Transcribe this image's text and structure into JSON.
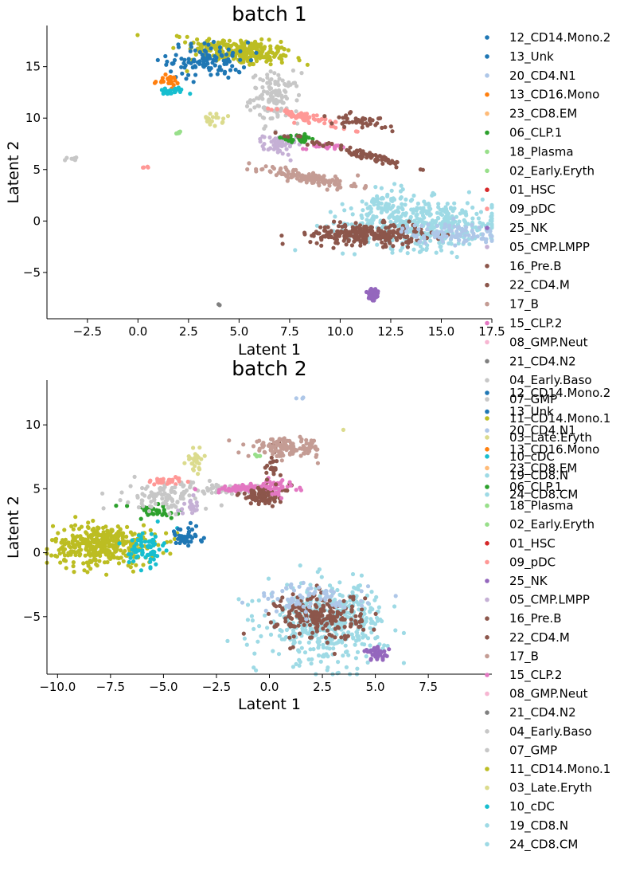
{
  "chart_data": [
    {
      "type": "scatter",
      "title": "batch 1",
      "xlabel": "Latent 1",
      "ylabel": "Latent 2",
      "xlim": [
        -4.5,
        17.5
      ],
      "ylim": [
        -9.5,
        19
      ],
      "xticks": [
        "−2.5",
        "0.0",
        "2.5",
        "5.0",
        "7.5",
        "10.0",
        "12.5",
        "15.0",
        "17.5"
      ],
      "xtick_values": [
        -2.5,
        0,
        2.5,
        5,
        7.5,
        10,
        12.5,
        15,
        17.5
      ],
      "yticks": [
        "−5",
        "0",
        "5",
        "10",
        "15"
      ],
      "ytick_values": [
        -5,
        0,
        5,
        10,
        15
      ],
      "grid": false,
      "legend_position": "right",
      "legend": [
        {
          "name": "12_CD14.Mono.2",
          "color": "#1f77b4"
        },
        {
          "name": "13_Unk",
          "color": "#1f77b4"
        },
        {
          "name": "20_CD4.N1",
          "color": "#aec7e8"
        },
        {
          "name": "13_CD16.Mono",
          "color": "#ff7f0e"
        },
        {
          "name": "23_CD8.EM",
          "color": "#ffbb78"
        },
        {
          "name": "06_CLP.1",
          "color": "#2ca02c"
        },
        {
          "name": "18_Plasma",
          "color": "#98df8a"
        },
        {
          "name": "02_Early.Eryth",
          "color": "#98df8a"
        },
        {
          "name": "01_HSC",
          "color": "#d62728"
        },
        {
          "name": "09_pDC",
          "color": "#ff9896"
        },
        {
          "name": "25_NK",
          "color": "#9467bd"
        },
        {
          "name": "05_CMP.LMPP",
          "color": "#c5b0d5"
        },
        {
          "name": "16_Pre.B",
          "color": "#8c564b"
        },
        {
          "name": "22_CD4.M",
          "color": "#8c564b"
        },
        {
          "name": "17_B",
          "color": "#c49c94"
        },
        {
          "name": "15_CLP.2",
          "color": "#e377c2"
        },
        {
          "name": "08_GMP.Neut",
          "color": "#f7b6d2"
        },
        {
          "name": "21_CD4.N2",
          "color": "#7f7f7f"
        },
        {
          "name": "04_Early.Baso",
          "color": "#c7c7c7"
        },
        {
          "name": "07_GMP",
          "color": "#c7c7c7"
        },
        {
          "name": "11_CD14.Mono.1",
          "color": "#bcbd22"
        },
        {
          "name": "03_Late.Eryth",
          "color": "#dbdb8d"
        },
        {
          "name": "10_cDC",
          "color": "#17becf"
        },
        {
          "name": "19_CD8.N",
          "color": "#9edae5"
        },
        {
          "name": "24_CD8.CM",
          "color": "#9edae5"
        }
      ],
      "clusters": [
        {
          "color": "#bcbd22",
          "cx": 5.0,
          "cy": 16.5,
          "sx": 1.3,
          "sy": 0.6,
          "n": 260,
          "rot": -0.25
        },
        {
          "color": "#1f77b4",
          "cx": 3.5,
          "cy": 15.6,
          "sx": 1.0,
          "sy": 0.9,
          "n": 110,
          "rot": 0
        },
        {
          "color": "#ff7f0e",
          "cx": 1.4,
          "cy": 13.6,
          "sx": 0.3,
          "sy": 0.25,
          "n": 25,
          "rot": 0
        },
        {
          "color": "#17becf",
          "cx": 1.6,
          "cy": 12.6,
          "sx": 0.35,
          "sy": 0.2,
          "n": 25,
          "rot": 0
        },
        {
          "color": "#c7c7c7",
          "cx": 6.8,
          "cy": 12.0,
          "sx": 0.6,
          "sy": 1.2,
          "n": 120,
          "rot": 0
        },
        {
          "color": "#dbdb8d",
          "cx": 3.7,
          "cy": 9.8,
          "sx": 0.25,
          "sy": 0.3,
          "n": 20,
          "rot": 0
        },
        {
          "color": "#98df8a",
          "cx": 2.0,
          "cy": 8.6,
          "sx": 0.08,
          "sy": 0.1,
          "n": 6,
          "rot": 0
        },
        {
          "color": "#c7c7c7",
          "cx": -3.3,
          "cy": 6.1,
          "sx": 0.15,
          "sy": 0.1,
          "n": 10,
          "rot": 0
        },
        {
          "color": "#ff9896",
          "cx": 0.4,
          "cy": 5.2,
          "sx": 0.1,
          "sy": 0.05,
          "n": 4,
          "rot": 0
        },
        {
          "color": "#ff9896",
          "cx": 8.5,
          "cy": 10.0,
          "sx": 0.9,
          "sy": 0.2,
          "n": 60,
          "rot": -0.5
        },
        {
          "color": "#c5b0d5",
          "cx": 7.0,
          "cy": 7.4,
          "sx": 0.4,
          "sy": 0.5,
          "n": 60,
          "rot": 0
        },
        {
          "color": "#2ca02c",
          "cx": 7.8,
          "cy": 8.0,
          "sx": 0.6,
          "sy": 0.2,
          "n": 30,
          "rot": 0
        },
        {
          "color": "#e377c2",
          "cx": 9.2,
          "cy": 7.3,
          "sx": 0.5,
          "sy": 0.15,
          "n": 30,
          "rot": 0
        },
        {
          "color": "#8c564b",
          "cx": 11.0,
          "cy": 9.6,
          "sx": 0.8,
          "sy": 0.3,
          "n": 40,
          "rot": -0.4
        },
        {
          "color": "#c49c94",
          "cx": 8.5,
          "cy": 4.2,
          "sx": 1.3,
          "sy": 0.3,
          "n": 120,
          "rot": -0.35
        },
        {
          "color": "#8c564b",
          "cx": 11.0,
          "cy": 6.5,
          "sx": 1.5,
          "sy": 0.2,
          "n": 80,
          "rot": -0.45
        },
        {
          "color": "#9edae5",
          "cx": 14.2,
          "cy": -0.3,
          "sx": 2.0,
          "sy": 1.2,
          "n": 420,
          "rot": 0
        },
        {
          "color": "#9edae5",
          "cx": 12.3,
          "cy": 1.8,
          "sx": 0.5,
          "sy": 1.0,
          "n": 60,
          "rot": 0
        },
        {
          "color": "#8c564b",
          "cx": 11.3,
          "cy": -1.3,
          "sx": 1.4,
          "sy": 0.5,
          "n": 260,
          "rot": 0
        },
        {
          "color": "#aec7e8",
          "cx": 15.5,
          "cy": -1.2,
          "sx": 1.2,
          "sy": 0.5,
          "n": 90,
          "rot": 0
        },
        {
          "color": "#9467bd",
          "cx": 11.6,
          "cy": -7.2,
          "sx": 0.15,
          "sy": 0.45,
          "n": 40,
          "rot": 0
        },
        {
          "color": "#7f7f7f",
          "cx": 4.0,
          "cy": -8.1,
          "sx": 0.03,
          "sy": 0.03,
          "n": 2,
          "rot": 0
        }
      ]
    },
    {
      "type": "scatter",
      "title": "batch 2",
      "xlabel": "Latent 1",
      "ylabel": "Latent 2",
      "xlim": [
        -10.5,
        10.5
      ],
      "ylim": [
        -9.5,
        13.5
      ],
      "xticks": [
        "−10.0",
        "−7.5",
        "−5.0",
        "−2.5",
        "0.0",
        "2.5",
        "5.0",
        "7.5"
      ],
      "xtick_values": [
        -10,
        -7.5,
        -5,
        -2.5,
        0,
        2.5,
        5,
        7.5
      ],
      "yticks": [
        "−5",
        "0",
        "5",
        "10"
      ],
      "ytick_values": [
        -5,
        0,
        5,
        10
      ],
      "grid": false,
      "legend_position": "right",
      "legend": [
        {
          "name": "12_CD14.Mono.2",
          "color": "#1f77b4"
        },
        {
          "name": "13_Unk",
          "color": "#1f77b4"
        },
        {
          "name": "20_CD4.N1",
          "color": "#aec7e8"
        },
        {
          "name": "13_CD16.Mono",
          "color": "#ff7f0e"
        },
        {
          "name": "23_CD8.EM",
          "color": "#ffbb78"
        },
        {
          "name": "06_CLP.1",
          "color": "#2ca02c"
        },
        {
          "name": "18_Plasma",
          "color": "#98df8a"
        },
        {
          "name": "02_Early.Eryth",
          "color": "#98df8a"
        },
        {
          "name": "01_HSC",
          "color": "#d62728"
        },
        {
          "name": "09_pDC",
          "color": "#ff9896"
        },
        {
          "name": "25_NK",
          "color": "#9467bd"
        },
        {
          "name": "05_CMP.LMPP",
          "color": "#c5b0d5"
        },
        {
          "name": "16_Pre.B",
          "color": "#8c564b"
        },
        {
          "name": "22_CD4.M",
          "color": "#8c564b"
        },
        {
          "name": "17_B",
          "color": "#c49c94"
        },
        {
          "name": "15_CLP.2",
          "color": "#e377c2"
        },
        {
          "name": "08_GMP.Neut",
          "color": "#f7b6d2"
        },
        {
          "name": "21_CD4.N2",
          "color": "#7f7f7f"
        },
        {
          "name": "04_Early.Baso",
          "color": "#c7c7c7"
        },
        {
          "name": "07_GMP",
          "color": "#c7c7c7"
        },
        {
          "name": "11_CD14.Mono.1",
          "color": "#bcbd22"
        },
        {
          "name": "03_Late.Eryth",
          "color": "#dbdb8d"
        },
        {
          "name": "10_cDC",
          "color": "#17becf"
        },
        {
          "name": "19_CD8.N",
          "color": "#9edae5"
        },
        {
          "name": "24_CD8.CM",
          "color": "#9edae5"
        }
      ],
      "clusters": [
        {
          "color": "#bcbd22",
          "cx": -7.8,
          "cy": 0.6,
          "sx": 1.2,
          "sy": 0.8,
          "n": 380,
          "rot": 0
        },
        {
          "color": "#17becf",
          "cx": -5.8,
          "cy": 0.4,
          "sx": 0.4,
          "sy": 0.7,
          "n": 70,
          "rot": 0
        },
        {
          "color": "#1f77b4",
          "cx": -4.0,
          "cy": 1.2,
          "sx": 0.4,
          "sy": 0.4,
          "n": 40,
          "rot": 0
        },
        {
          "color": "#2ca02c",
          "cx": -5.5,
          "cy": 3.2,
          "sx": 0.8,
          "sy": 0.3,
          "n": 40,
          "rot": 0
        },
        {
          "color": "#c7c7c7",
          "cx": -4.8,
          "cy": 4.5,
          "sx": 1.0,
          "sy": 0.6,
          "n": 110,
          "rot": 0
        },
        {
          "color": "#ff9896",
          "cx": -4.8,
          "cy": 5.6,
          "sx": 0.6,
          "sy": 0.15,
          "n": 30,
          "rot": 0
        },
        {
          "color": "#dbdb8d",
          "cx": -3.5,
          "cy": 7.2,
          "sx": 0.2,
          "sy": 0.5,
          "n": 30,
          "rot": 0
        },
        {
          "color": "#c7c7c7",
          "cx": -1.7,
          "cy": 5.0,
          "sx": 1.0,
          "sy": 0.15,
          "n": 60,
          "rot": 0
        },
        {
          "color": "#e377c2",
          "cx": -1.2,
          "cy": 5.0,
          "sx": 1.1,
          "sy": 0.15,
          "n": 70,
          "rot": 0
        },
        {
          "color": "#8c564b",
          "cx": -0.2,
          "cy": 4.5,
          "sx": 0.6,
          "sy": 0.4,
          "n": 80,
          "rot": 0
        },
        {
          "color": "#e377c2",
          "cx": 0.3,
          "cy": 5.2,
          "sx": 0.3,
          "sy": 0.3,
          "n": 40,
          "rot": 0
        },
        {
          "color": "#8c564b",
          "cx": 0.1,
          "cy": 6.6,
          "sx": 0.2,
          "sy": 0.7,
          "n": 25,
          "rot": 0
        },
        {
          "color": "#c49c94",
          "cx": 0.8,
          "cy": 8.2,
          "sx": 0.9,
          "sy": 0.35,
          "n": 130,
          "rot": 0
        },
        {
          "color": "#98df8a",
          "cx": -0.5,
          "cy": 7.5,
          "sx": 0.1,
          "sy": 0.1,
          "n": 5,
          "rot": 0
        },
        {
          "color": "#c5b0d5",
          "cx": -3.7,
          "cy": 3.6,
          "sx": 0.3,
          "sy": 0.3,
          "n": 20,
          "rot": 0
        },
        {
          "color": "#9edae5",
          "cx": 2.7,
          "cy": -5.5,
          "sx": 1.4,
          "sy": 1.5,
          "n": 460,
          "rot": 0
        },
        {
          "color": "#8c564b",
          "cx": 2.4,
          "cy": -5.0,
          "sx": 1.0,
          "sy": 0.9,
          "n": 220,
          "rot": 0
        },
        {
          "color": "#aec7e8",
          "cx": 2.0,
          "cy": -3.6,
          "sx": 1.3,
          "sy": 0.6,
          "n": 70,
          "rot": 0
        },
        {
          "color": "#9467bd",
          "cx": 5.1,
          "cy": -7.9,
          "sx": 0.3,
          "sy": 0.25,
          "n": 40,
          "rot": 0
        },
        {
          "color": "#aec7e8",
          "cx": 1.8,
          "cy": 12.2,
          "sx": 0.2,
          "sy": 0.1,
          "n": 3,
          "rot": 0
        },
        {
          "color": "#dbdb8d",
          "cx": 3.5,
          "cy": 9.6,
          "sx": 0.02,
          "sy": 0.02,
          "n": 1,
          "rot": 0
        }
      ]
    }
  ]
}
